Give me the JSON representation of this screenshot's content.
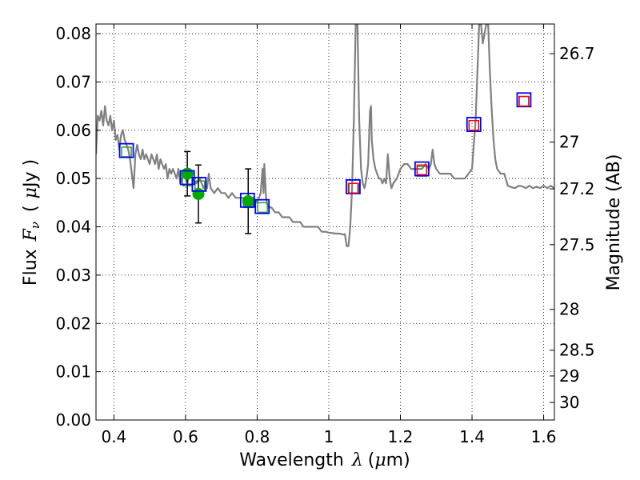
{
  "chart_data": {
    "type": "line",
    "xlabel_prefix": "Wavelength",
    "xlabel_symbol": "λ",
    "xlabel_unit_open": "(",
    "xlabel_unit_mu": "μ",
    "xlabel_unit_rest": "m)",
    "ylabel_prefix": "Flux",
    "ylabel_symbol": "F",
    "ylabel_sub": "ν",
    "ylabel_unit_open": "(",
    "ylabel_unit_mu": "μ",
    "ylabel_unit_rest": "Jy )",
    "y2label": "Magnitude (AB)",
    "xlim": [
      0.35,
      1.63
    ],
    "ylim": [
      0.0,
      0.082
    ],
    "grid": true,
    "x_ticks": [
      {
        "value": 0.4,
        "label": "0.4"
      },
      {
        "value": 0.6,
        "label": "0.6"
      },
      {
        "value": 0.8,
        "label": "0.8"
      },
      {
        "value": 1.0,
        "label": "1"
      },
      {
        "value": 1.2,
        "label": "1.2"
      },
      {
        "value": 1.4,
        "label": "1.4"
      },
      {
        "value": 1.6,
        "label": "1.6"
      }
    ],
    "y_ticks": [
      {
        "value": 0.0,
        "label": "0.00"
      },
      {
        "value": 0.01,
        "label": "0.01"
      },
      {
        "value": 0.02,
        "label": "0.02"
      },
      {
        "value": 0.03,
        "label": "0.03"
      },
      {
        "value": 0.04,
        "label": "0.04"
      },
      {
        "value": 0.05,
        "label": "0.05"
      },
      {
        "value": 0.06,
        "label": "0.06"
      },
      {
        "value": 0.07,
        "label": "0.07"
      },
      {
        "value": 0.08,
        "label": "0.08"
      }
    ],
    "y2_ticks": [
      {
        "value": 26.7,
        "label": "26.7"
      },
      {
        "value": 27.0,
        "label": "27"
      },
      {
        "value": 27.2,
        "label": "27.2"
      },
      {
        "value": 27.5,
        "label": "27.5"
      },
      {
        "value": 28.0,
        "label": "28"
      },
      {
        "value": 28.5,
        "label": "28.5"
      },
      {
        "value": 29.0,
        "label": "29"
      },
      {
        "value": 30.0,
        "label": "30"
      }
    ],
    "series": [
      {
        "kind": "line",
        "color": "#808080",
        "points": [
          [
            0.35,
            0.055
          ],
          [
            0.355,
            0.063
          ],
          [
            0.36,
            0.062
          ],
          [
            0.365,
            0.064
          ],
          [
            0.37,
            0.061
          ],
          [
            0.375,
            0.065
          ],
          [
            0.38,
            0.062
          ],
          [
            0.385,
            0.061
          ],
          [
            0.39,
            0.063
          ],
          [
            0.395,
            0.06
          ],
          [
            0.4,
            0.062
          ],
          [
            0.405,
            0.058
          ],
          [
            0.41,
            0.059
          ],
          [
            0.415,
            0.056
          ],
          [
            0.42,
            0.059
          ],
          [
            0.425,
            0.06
          ],
          [
            0.43,
            0.058
          ],
          [
            0.435,
            0.057
          ],
          [
            0.44,
            0.056
          ],
          [
            0.445,
            0.054
          ],
          [
            0.45,
            0.051
          ],
          [
            0.455,
            0.048
          ],
          [
            0.46,
            0.055
          ],
          [
            0.465,
            0.057
          ],
          [
            0.47,
            0.055
          ],
          [
            0.475,
            0.054
          ],
          [
            0.48,
            0.056
          ],
          [
            0.485,
            0.054
          ],
          [
            0.49,
            0.055
          ],
          [
            0.495,
            0.054
          ],
          [
            0.5,
            0.053
          ],
          [
            0.505,
            0.055
          ],
          [
            0.51,
            0.054
          ],
          [
            0.515,
            0.053
          ],
          [
            0.52,
            0.055
          ],
          [
            0.525,
            0.052
          ],
          [
            0.53,
            0.054
          ],
          [
            0.535,
            0.053
          ],
          [
            0.54,
            0.052
          ],
          [
            0.545,
            0.053
          ],
          [
            0.55,
            0.05
          ],
          [
            0.555,
            0.052
          ],
          [
            0.56,
            0.051
          ],
          [
            0.565,
            0.052
          ],
          [
            0.57,
            0.051
          ],
          [
            0.575,
            0.05
          ],
          [
            0.58,
            0.052
          ],
          [
            0.585,
            0.049
          ],
          [
            0.59,
            0.05
          ],
          [
            0.595,
            0.051
          ],
          [
            0.6,
            0.05
          ],
          [
            0.605,
            0.049
          ],
          [
            0.61,
            0.051
          ],
          [
            0.62,
            0.05
          ],
          [
            0.63,
            0.049
          ],
          [
            0.64,
            0.05
          ],
          [
            0.65,
            0.048
          ],
          [
            0.655,
            0.049
          ],
          [
            0.66,
            0.048
          ],
          [
            0.665,
            0.051
          ],
          [
            0.67,
            0.048
          ],
          [
            0.68,
            0.047
          ],
          [
            0.69,
            0.048
          ],
          [
            0.7,
            0.047
          ],
          [
            0.71,
            0.047
          ],
          [
            0.72,
            0.046
          ],
          [
            0.73,
            0.047
          ],
          [
            0.74,
            0.046
          ],
          [
            0.75,
            0.046
          ],
          [
            0.76,
            0.046
          ],
          [
            0.77,
            0.045
          ],
          [
            0.78,
            0.046
          ],
          [
            0.79,
            0.046
          ],
          [
            0.8,
            0.045
          ],
          [
            0.805,
            0.046
          ],
          [
            0.81,
            0.047
          ],
          [
            0.815,
            0.052
          ],
          [
            0.818,
            0.047
          ],
          [
            0.82,
            0.053
          ],
          [
            0.825,
            0.046
          ],
          [
            0.83,
            0.044
          ],
          [
            0.84,
            0.044
          ],
          [
            0.85,
            0.043
          ],
          [
            0.86,
            0.043
          ],
          [
            0.87,
            0.042
          ],
          [
            0.88,
            0.042
          ],
          [
            0.89,
            0.042
          ],
          [
            0.9,
            0.041
          ],
          [
            0.91,
            0.041
          ],
          [
            0.92,
            0.041
          ],
          [
            0.93,
            0.04
          ],
          [
            0.94,
            0.04
          ],
          [
            0.95,
            0.04
          ],
          [
            0.96,
            0.04
          ],
          [
            0.97,
            0.04
          ],
          [
            0.98,
            0.039
          ],
          [
            0.99,
            0.039
          ],
          [
            1.0,
            0.0388
          ],
          [
            1.01,
            0.0387
          ],
          [
            1.02,
            0.0386
          ],
          [
            1.03,
            0.0386
          ],
          [
            1.04,
            0.0384
          ],
          [
            1.045,
            0.0385
          ],
          [
            1.05,
            0.036
          ],
          [
            1.055,
            0.036
          ],
          [
            1.06,
            0.04
          ],
          [
            1.065,
            0.048
          ],
          [
            1.07,
            0.062
          ],
          [
            1.075,
            0.082
          ],
          [
            1.08,
            0.082
          ],
          [
            1.085,
            0.062
          ],
          [
            1.09,
            0.052
          ],
          [
            1.095,
            0.049
          ],
          [
            1.1,
            0.048
          ],
          [
            1.105,
            0.05
          ],
          [
            1.11,
            0.053
          ],
          [
            1.115,
            0.064
          ],
          [
            1.118,
            0.065
          ],
          [
            1.12,
            0.058
          ],
          [
            1.125,
            0.054
          ],
          [
            1.13,
            0.052
          ],
          [
            1.135,
            0.051
          ],
          [
            1.14,
            0.05
          ],
          [
            1.145,
            0.05
          ],
          [
            1.15,
            0.049
          ],
          [
            1.155,
            0.05
          ],
          [
            1.16,
            0.049
          ],
          [
            1.165,
            0.055
          ],
          [
            1.17,
            0.05
          ],
          [
            1.175,
            0.048
          ],
          [
            1.18,
            0.049
          ],
          [
            1.19,
            0.05
          ],
          [
            1.2,
            0.052
          ],
          [
            1.21,
            0.053
          ],
          [
            1.22,
            0.053
          ],
          [
            1.23,
            0.052
          ],
          [
            1.24,
            0.052
          ],
          [
            1.25,
            0.052
          ],
          [
            1.26,
            0.052
          ],
          [
            1.27,
            0.053
          ],
          [
            1.28,
            0.052
          ],
          [
            1.285,
            0.053
          ],
          [
            1.29,
            0.056
          ],
          [
            1.295,
            0.053
          ],
          [
            1.3,
            0.052
          ],
          [
            1.31,
            0.051
          ],
          [
            1.32,
            0.051
          ],
          [
            1.33,
            0.051
          ],
          [
            1.34,
            0.051
          ],
          [
            1.35,
            0.05
          ],
          [
            1.36,
            0.05
          ],
          [
            1.37,
            0.05
          ],
          [
            1.38,
            0.05
          ],
          [
            1.39,
            0.051
          ],
          [
            1.4,
            0.052
          ],
          [
            1.41,
            0.062
          ],
          [
            1.42,
            0.082
          ],
          [
            1.425,
            0.082
          ],
          [
            1.43,
            0.078
          ],
          [
            1.435,
            0.08
          ],
          [
            1.44,
            0.082
          ],
          [
            1.445,
            0.082
          ],
          [
            1.45,
            0.072
          ],
          [
            1.455,
            0.064
          ],
          [
            1.46,
            0.058
          ],
          [
            1.465,
            0.054
          ],
          [
            1.47,
            0.052
          ],
          [
            1.48,
            0.051
          ],
          [
            1.49,
            0.051
          ],
          [
            1.5,
            0.0485
          ],
          [
            1.51,
            0.0482
          ],
          [
            1.52,
            0.048
          ],
          [
            1.53,
            0.0485
          ],
          [
            1.54,
            0.0484
          ],
          [
            1.55,
            0.048
          ],
          [
            1.56,
            0.0485
          ],
          [
            1.57,
            0.048
          ],
          [
            1.58,
            0.0483
          ],
          [
            1.59,
            0.048
          ],
          [
            1.6,
            0.0485
          ],
          [
            1.61,
            0.048
          ],
          [
            1.62,
            0.0485
          ],
          [
            1.63,
            0.048
          ]
        ]
      },
      {
        "kind": "model-photometry",
        "color": "#2ca02c",
        "points": [
          [
            0.435,
            0.0555
          ],
          [
            0.605,
            0.0495
          ],
          [
            0.64,
            0.0485
          ],
          [
            0.775,
            0.045
          ],
          [
            0.815,
            0.044
          ],
          [
            1.07,
            0.048
          ],
          [
            1.26,
            0.0515
          ],
          [
            1.405,
            0.061
          ],
          [
            1.545,
            0.066
          ]
        ]
      },
      {
        "kind": "measured-flux",
        "color": "#00aa00",
        "points": [
          {
            "x": 0.605,
            "y": 0.051,
            "err": 0.0046
          },
          {
            "x": 0.636,
            "y": 0.0468,
            "err": 0.006
          },
          {
            "x": 0.775,
            "y": 0.0453,
            "err": 0.0067
          }
        ]
      },
      {
        "kind": "measured-photometry",
        "color": "#0000ff",
        "points": [
          [
            0.435,
            0.0558
          ],
          [
            0.605,
            0.0502
          ],
          [
            0.638,
            0.0488
          ],
          [
            0.773,
            0.0455
          ],
          [
            0.814,
            0.0442
          ],
          [
            1.068,
            0.0483
          ],
          [
            1.26,
            0.052
          ],
          [
            1.405,
            0.0612
          ],
          [
            1.545,
            0.0663
          ]
        ]
      },
      {
        "kind": "upper-limits",
        "color": "#ff0000",
        "points": [
          [
            1.068,
            0.048
          ],
          [
            1.26,
            0.0518
          ],
          [
            1.405,
            0.061
          ],
          [
            1.545,
            0.066
          ]
        ]
      }
    ]
  }
}
